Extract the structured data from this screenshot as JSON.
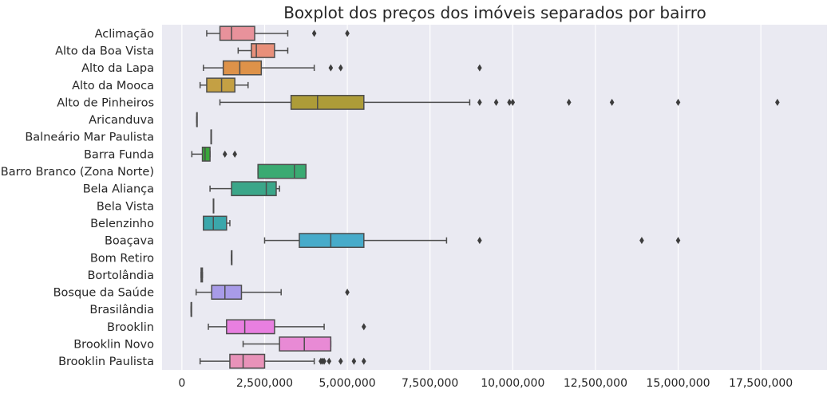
{
  "chart_data": {
    "type": "boxplot",
    "orientation": "horizontal",
    "title": "Boxplot dos preços dos imóveis separados por bairro",
    "xlabel": "",
    "ylabel": "",
    "xlim": [
      -600000,
      19500000
    ],
    "xticks": [
      0,
      2500000,
      5000000,
      7500000,
      10000000,
      12500000,
      15000000,
      17500000
    ],
    "xtick_labels": [
      "0",
      "2,500,000",
      "5,000,000",
      "7,500,000",
      "10,000,000",
      "12,500,000",
      "15,000,000",
      "17,500,000"
    ],
    "grid": true,
    "style": {
      "background": "#eaeaf2",
      "grid_color": "#ffffff",
      "line_color": "#4d4d4d"
    },
    "categories": [
      {
        "name": "Aclimação",
        "color": "#e8929b",
        "whislo": 750000,
        "q1": 1150000,
        "med": 1500000,
        "q3": 2200000,
        "whishi": 3200000,
        "fliers": [
          4000000,
          5000000
        ]
      },
      {
        "name": "Alto da Boa Vista",
        "color": "#e88f7a",
        "whislo": 1700000,
        "q1": 2100000,
        "med": 2250000,
        "q3": 2800000,
        "whishi": 3200000,
        "fliers": []
      },
      {
        "name": "Alto da Lapa",
        "color": "#de9249",
        "whislo": 650000,
        "q1": 1250000,
        "med": 1750000,
        "q3": 2400000,
        "whishi": 4000000,
        "fliers": [
          4500000,
          4800000,
          9000000
        ]
      },
      {
        "name": "Alto da Mooca",
        "color": "#c4a044",
        "whislo": 550000,
        "q1": 750000,
        "med": 1200000,
        "q3": 1600000,
        "whishi": 2000000,
        "fliers": []
      },
      {
        "name": "Alto de Pinheiros",
        "color": "#ad9c38",
        "whislo": 1150000,
        "q1": 3300000,
        "med": 4100000,
        "q3": 5500000,
        "whishi": 8700000,
        "fliers": [
          9000000,
          9500000,
          9900000,
          10000000,
          11700000,
          13000000,
          15000000,
          18000000
        ]
      },
      {
        "name": "Aricanduva",
        "color": "#8aa83a",
        "whislo": 450000,
        "q1": 450000,
        "med": 450000,
        "q3": 450000,
        "whishi": 450000,
        "fliers": []
      },
      {
        "name": "Balneário Mar Paulista",
        "color": "#6eac3a",
        "whislo": 880000,
        "q1": 880000,
        "med": 880000,
        "q3": 880000,
        "whishi": 880000,
        "fliers": []
      },
      {
        "name": "Barra Funda",
        "color": "#39a83a",
        "whislo": 300000,
        "q1": 620000,
        "med": 700000,
        "q3": 850000,
        "whishi": 850000,
        "fliers": [
          1300000,
          1600000
        ]
      },
      {
        "name": "Barro Branco (Zona Norte)",
        "color": "#3aaa72",
        "whislo": 2300000,
        "q1": 2300000,
        "med": 3400000,
        "q3": 3750000,
        "whishi": 3750000,
        "fliers": []
      },
      {
        "name": "Bela Aliança",
        "color": "#3ba689",
        "whislo": 850000,
        "q1": 1500000,
        "med": 2550000,
        "q3": 2850000,
        "whishi": 2950000,
        "fliers": []
      },
      {
        "name": "Bela Vista",
        "color": "#3ca79a",
        "whislo": 950000,
        "q1": 950000,
        "med": 950000,
        "q3": 950000,
        "whishi": 950000,
        "fliers": []
      },
      {
        "name": "Belenzinho",
        "color": "#3ba7ab",
        "whislo": 650000,
        "q1": 650000,
        "med": 950000,
        "q3": 1350000,
        "whishi": 1450000,
        "fliers": []
      },
      {
        "name": "Boaçava",
        "color": "#47abca",
        "whislo": 2500000,
        "q1": 3550000,
        "med": 4500000,
        "q3": 5500000,
        "whishi": 8000000,
        "fliers": [
          9000000,
          13900000,
          15000000
        ]
      },
      {
        "name": "Bom Retiro",
        "color": "#4b98c9",
        "whislo": 1500000,
        "q1": 1500000,
        "med": 1500000,
        "q3": 1500000,
        "whishi": 1500000,
        "fliers": []
      },
      {
        "name": "Bortolândia",
        "color": "#8194d4",
        "whislo": 580000,
        "q1": 580000,
        "med": 600000,
        "q3": 620000,
        "whishi": 620000,
        "fliers": []
      },
      {
        "name": "Bosque da Saúde",
        "color": "#a89be8",
        "whislo": 430000,
        "q1": 900000,
        "med": 1300000,
        "q3": 1800000,
        "whishi": 3000000,
        "fliers": [
          5000000
        ]
      },
      {
        "name": "Brasilândia",
        "color": "#c891e8",
        "whislo": 280000,
        "q1": 280000,
        "med": 280000,
        "q3": 280000,
        "whishi": 280000,
        "fliers": []
      },
      {
        "name": "Brooklin",
        "color": "#e87fe0",
        "whislo": 800000,
        "q1": 1350000,
        "med": 1900000,
        "q3": 2800000,
        "whishi": 4300000,
        "fliers": [
          5500000
        ]
      },
      {
        "name": "Brooklin Novo",
        "color": "#e88ad5",
        "whislo": 1850000,
        "q1": 2950000,
        "med": 3700000,
        "q3": 4500000,
        "whishi": 4500000,
        "fliers": []
      },
      {
        "name": "Brooklin Paulista",
        "color": "#e892b9",
        "whislo": 550000,
        "q1": 1450000,
        "med": 1850000,
        "q3": 2500000,
        "whishi": 4000000,
        "fliers": [
          4200000,
          4250000,
          4300000,
          4450000,
          4800000,
          5200000,
          5500000
        ]
      }
    ]
  }
}
